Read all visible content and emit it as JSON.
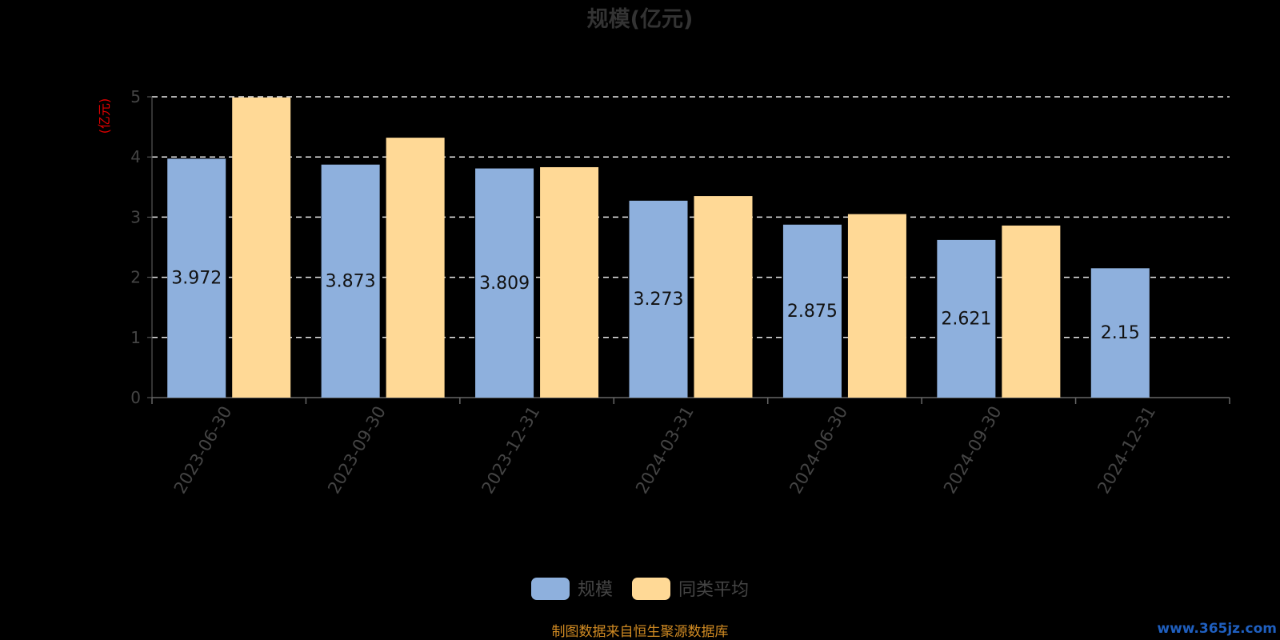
{
  "chart_data": {
    "type": "bar",
    "title": "规模(亿元)",
    "ylabel": "(亿元)",
    "xlabel": "",
    "categories": [
      "2023-06-30",
      "2023-09-30",
      "2023-12-31",
      "2024-03-31",
      "2024-06-30",
      "2024-09-30",
      "2024-12-31"
    ],
    "series": [
      {
        "name": "规模",
        "color": "#8eb0dd",
        "values": [
          3.972,
          3.873,
          3.809,
          3.273,
          2.875,
          2.621,
          2.15
        ],
        "labels": [
          "3.972",
          "3.873",
          "3.809",
          "3.273",
          "2.875",
          "2.621",
          "2.15"
        ]
      },
      {
        "name": "同类平均",
        "color": "#ffd996",
        "values": [
          4.99,
          4.32,
          3.83,
          3.35,
          3.05,
          2.86,
          null
        ]
      }
    ],
    "ylim": [
      0,
      5
    ],
    "yticks": [
      "0",
      "1",
      "2",
      "3",
      "4",
      "5"
    ],
    "grid": true,
    "legend_position": "bottom-center"
  },
  "footer": {
    "source": "制图数据来自恒生聚源数据库",
    "watermark": "www.365jz.com"
  }
}
